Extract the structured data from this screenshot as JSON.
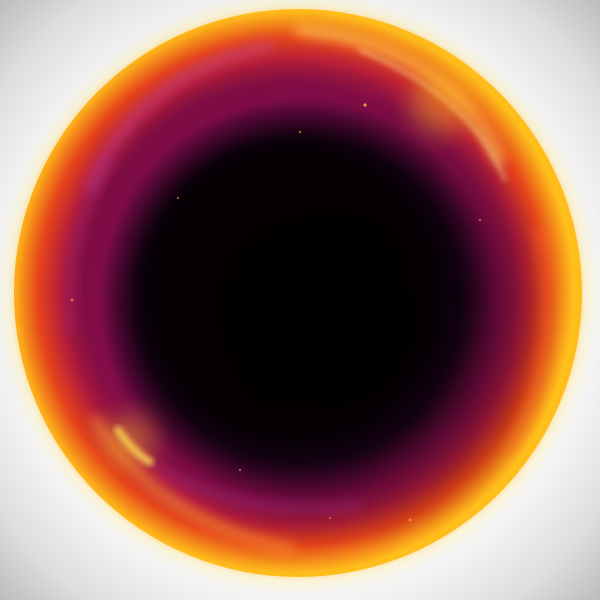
{
  "scene": {
    "subject": "glowing-orb",
    "colors": {
      "background": "#ffffff",
      "vignette": "#b9b9b9",
      "core": "#050003",
      "inner_purple": "#3a0438",
      "magenta": "#b0115e",
      "rim_red": "#e3301c",
      "rim_orange": "#f06a10",
      "rim_yellow": "#ffd21a"
    }
  }
}
